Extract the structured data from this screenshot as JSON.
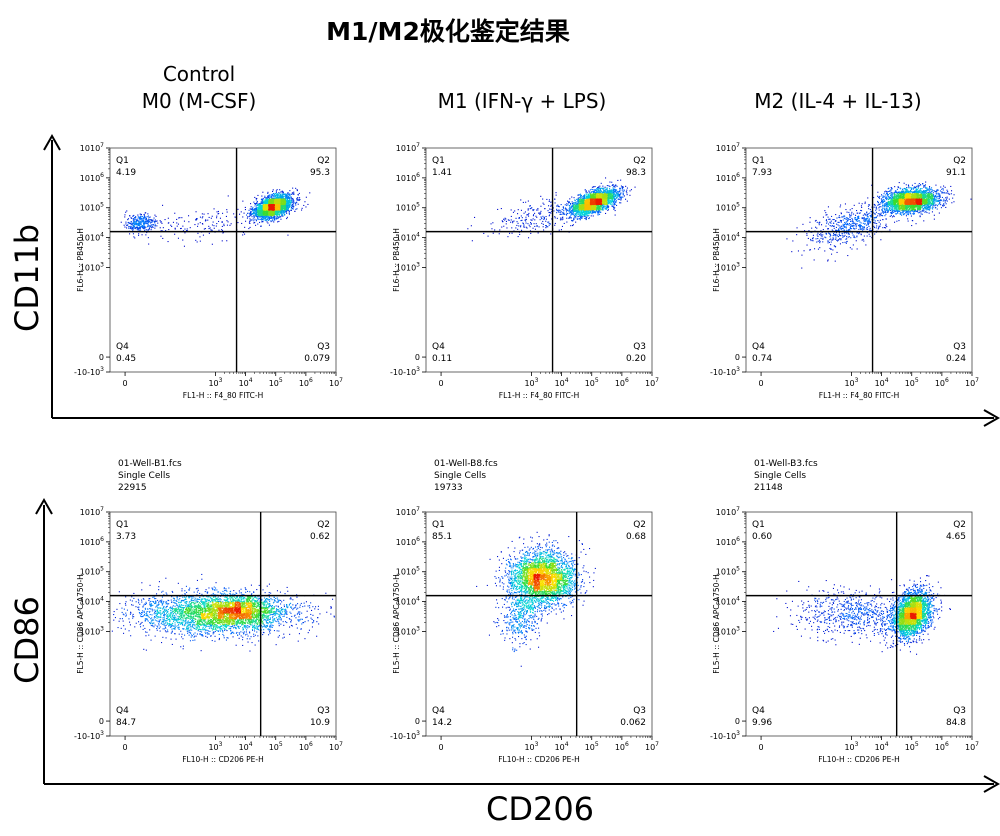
{
  "title": "M1/M2极化鉴定结果",
  "columns": [
    {
      "line1": "Control",
      "line2": "M0 (M-CSF)"
    },
    {
      "line1": "",
      "line2": "M1 (IFN-γ + LPS)"
    },
    {
      "line1": "",
      "line2": "M2 (IL-4 + IL-13)"
    }
  ],
  "row_axis_labels": [
    "CD11b",
    "CD86"
  ],
  "bottom_axis_label": "CD206",
  "chart_data": [
    {
      "type": "scatter",
      "row": 0,
      "col": 0,
      "xlabel": "FL1-H :: F4_80 FITC-H",
      "ylabel": "FL6-H :: PB450-H",
      "quadrants": {
        "Q1": "4.19",
        "Q2": "95.3",
        "Q3": "0.079",
        "Q4": "0.45"
      },
      "gate": {
        "x": 3.7,
        "y": 4.2
      },
      "clusters": [
        {
          "cx": 4.9,
          "cy": 5.05,
          "sx": 0.32,
          "sy": 0.2,
          "rho": 0.45,
          "n": 2600
        },
        {
          "cx": 0.5,
          "cy": 4.5,
          "sx": 0.28,
          "sy": 0.14,
          "rho": 0,
          "n": 320
        },
        {
          "cx": 2.6,
          "cy": 4.5,
          "sx": 1.0,
          "sy": 0.3,
          "rho": 0.3,
          "n": 160
        }
      ],
      "file": null
    },
    {
      "type": "scatter",
      "row": 0,
      "col": 1,
      "xlabel": "FL1-H :: F4_80 FITC-H",
      "ylabel": "FL6-H :: PB450-H",
      "quadrants": {
        "Q1": "1.41",
        "Q2": "98.3",
        "Q3": "0.20",
        "Q4": "0.11"
      },
      "gate": {
        "x": 3.7,
        "y": 4.2
      },
      "clusters": [
        {
          "cx": 5.05,
          "cy": 5.2,
          "sx": 0.4,
          "sy": 0.22,
          "rho": 0.6,
          "n": 2600
        },
        {
          "cx": 3.2,
          "cy": 4.7,
          "sx": 0.75,
          "sy": 0.3,
          "rho": 0.4,
          "n": 260
        }
      ],
      "file": null
    },
    {
      "type": "scatter",
      "row": 0,
      "col": 2,
      "xlabel": "FL1-H :: F4_80 FITC-H",
      "ylabel": "FL6-H :: PB450-H",
      "quadrants": {
        "Q1": "7.93",
        "Q2": "91.1",
        "Q3": "0.24",
        "Q4": "0.74"
      },
      "gate": {
        "x": 3.7,
        "y": 4.2
      },
      "clusters": [
        {
          "cx": 4.95,
          "cy": 5.25,
          "sx": 0.45,
          "sy": 0.2,
          "rho": 0.2,
          "n": 2600
        },
        {
          "cx": 3.0,
          "cy": 4.45,
          "sx": 0.65,
          "sy": 0.3,
          "rho": 0.35,
          "n": 520
        },
        {
          "cx": 2.2,
          "cy": 3.9,
          "sx": 0.5,
          "sy": 0.4,
          "rho": 0,
          "n": 80
        }
      ],
      "file": null
    },
    {
      "type": "scatter",
      "row": 1,
      "col": 0,
      "xlabel": "FL10-H :: CD206 PE-H",
      "ylabel": "FL5-H :: CD86 APC-A750-H",
      "quadrants": {
        "Q1": "3.73",
        "Q2": "0.62",
        "Q3": "10.9",
        "Q4": "84.7"
      },
      "gate": {
        "x": 4.5,
        "y": 4.2
      },
      "clusters": [
        {
          "cx": 3.0,
          "cy": 3.6,
          "sx": 1.3,
          "sy": 0.35,
          "rho": 0,
          "n": 3200
        },
        {
          "cx": 3.8,
          "cy": 3.75,
          "sx": 0.55,
          "sy": 0.25,
          "rho": 0,
          "n": 900
        }
      ],
      "file": {
        "name": "01-Well-B1.fcs",
        "population": "Single Cells",
        "count": "22915"
      }
    },
    {
      "type": "scatter",
      "row": 1,
      "col": 1,
      "xlabel": "FL10-H :: CD206 PE-H",
      "ylabel": "FL5-H :: CD86 APC-A750-H",
      "quadrants": {
        "Q1": "85.1",
        "Q2": "0.68",
        "Q3": "0.062",
        "Q4": "14.2"
      },
      "gate": {
        "x": 4.5,
        "y": 4.2
      },
      "clusters": [
        {
          "cx": 3.35,
          "cy": 4.8,
          "sx": 0.55,
          "sy": 0.45,
          "rho": 0,
          "n": 3000
        },
        {
          "cx": 2.7,
          "cy": 3.6,
          "sx": 0.35,
          "sy": 0.5,
          "rho": 0.3,
          "n": 450
        }
      ],
      "file": {
        "name": "01-Well-B8.fcs",
        "population": "Single Cells",
        "count": "19733"
      }
    },
    {
      "type": "scatter",
      "row": 1,
      "col": 2,
      "xlabel": "FL10-H :: CD206 PE-H",
      "ylabel": "FL5-H :: CD86 APC-A750-H",
      "quadrants": {
        "Q1": "0.60",
        "Q2": "4.65",
        "Q3": "84.8",
        "Q4": "9.96"
      },
      "gate": {
        "x": 4.5,
        "y": 4.2
      },
      "clusters": [
        {
          "cx": 5.0,
          "cy": 3.6,
          "sx": 0.32,
          "sy": 0.38,
          "rho": 0.3,
          "n": 2600
        },
        {
          "cx": 3.1,
          "cy": 3.6,
          "sx": 1.0,
          "sy": 0.4,
          "rho": 0,
          "n": 700
        }
      ],
      "file": {
        "name": "01-Well-B3.fcs",
        "population": "Single Cells",
        "count": "21148"
      }
    }
  ],
  "axis": {
    "range": [
      -0.5,
      7
    ],
    "ticks": [
      {
        "v": 7,
        "label": "10",
        "exp": "7"
      },
      {
        "v": 6,
        "label": "10",
        "exp": "6"
      },
      {
        "v": 5,
        "label": "10",
        "exp": "5"
      },
      {
        "v": 4,
        "label": "10",
        "exp": "4"
      },
      {
        "v": 3,
        "label": "10",
        "exp": "3"
      },
      {
        "v": 0,
        "label": "0",
        "exp": ""
      },
      {
        "v": -0.5,
        "label": "-10",
        "exp": "3"
      }
    ]
  }
}
